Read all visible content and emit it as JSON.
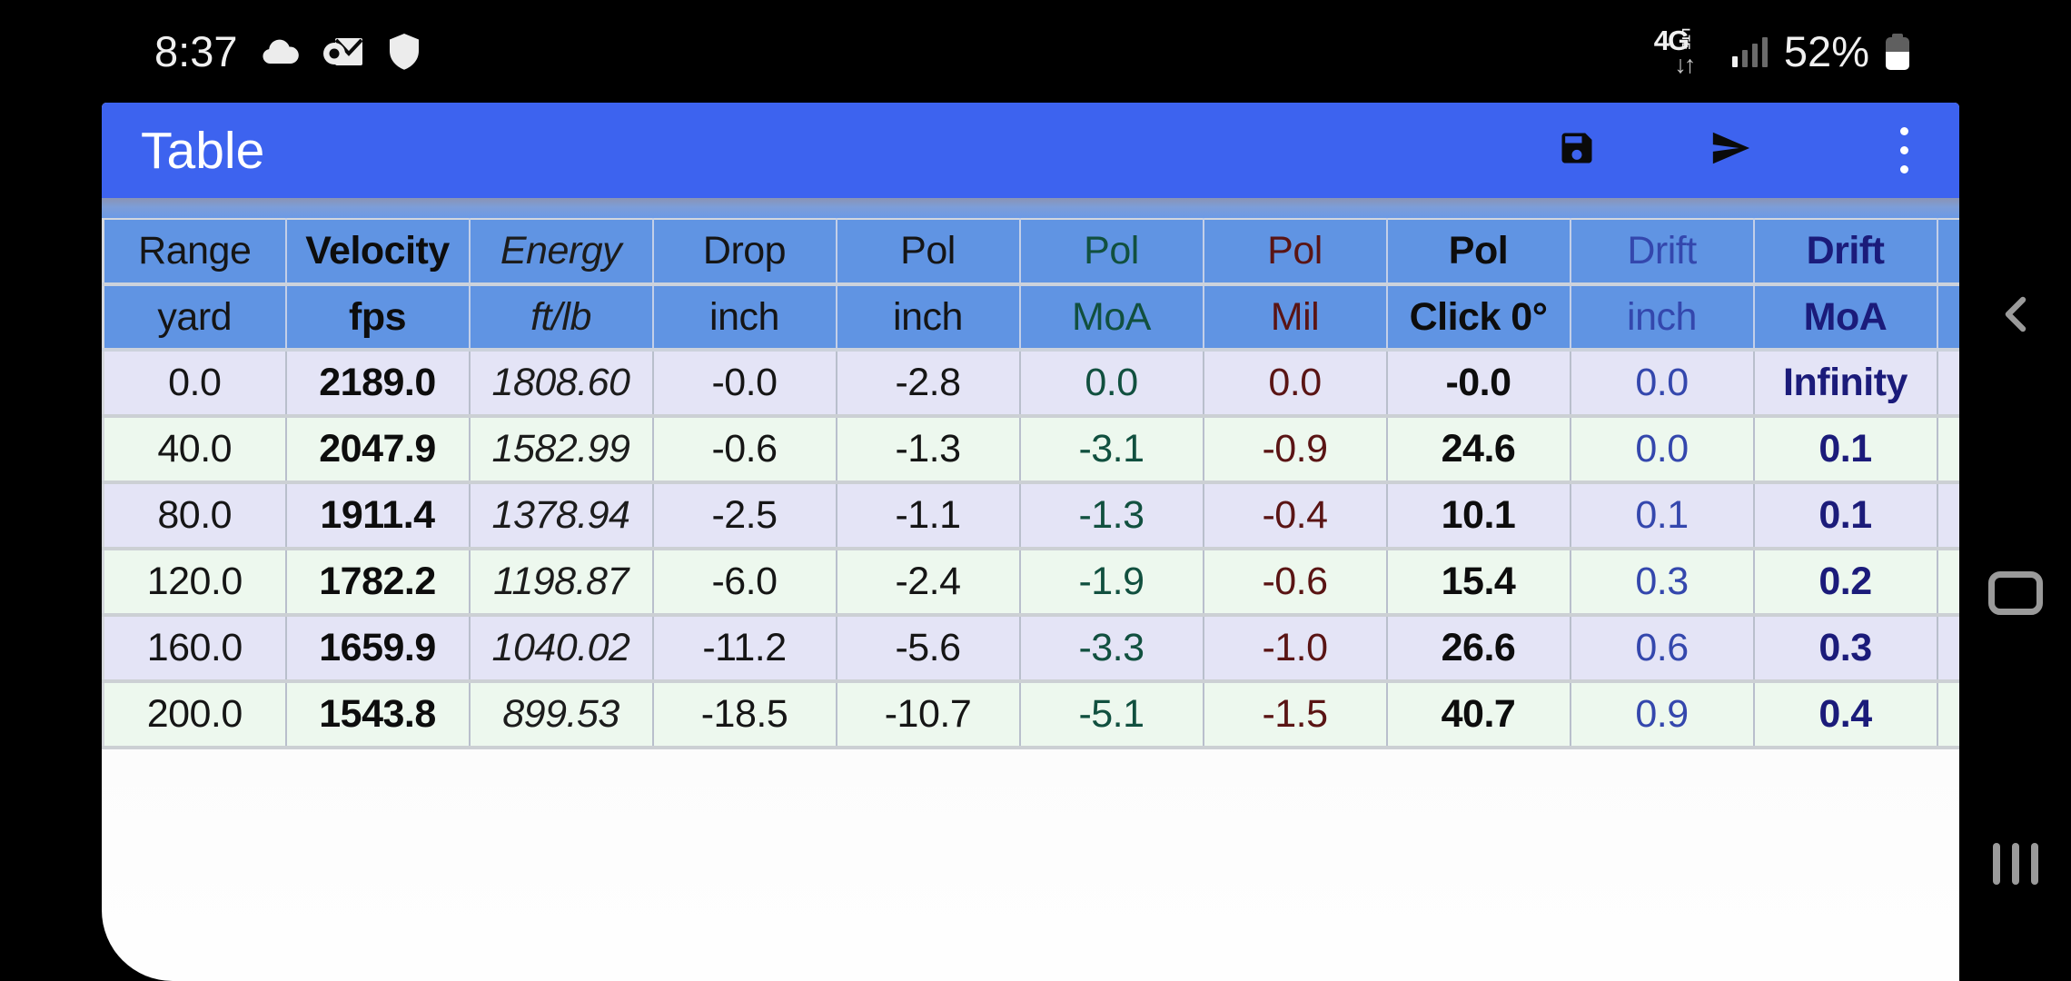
{
  "status_bar": {
    "time": "8:37",
    "notification_icons": [
      "cloud",
      "mail",
      "shield"
    ],
    "network": "4G",
    "network_tech": "LTE",
    "battery_percent": "52%",
    "battery_level": 52
  },
  "app_bar": {
    "title": "Table",
    "actions": [
      {
        "label": "Save",
        "icon": "save-icon"
      },
      {
        "label": "Send",
        "icon": "send-icon"
      },
      {
        "label": "More options",
        "icon": "overflow-menu-icon"
      }
    ]
  },
  "table": {
    "columns": [
      {
        "name": "Range",
        "unit": "yard",
        "style": "plain"
      },
      {
        "name": "Velocity",
        "unit": "fps",
        "style": "bold"
      },
      {
        "name": "Energy",
        "unit": "ft/lb",
        "style": "italic"
      },
      {
        "name": "Drop",
        "unit": "inch",
        "style": "plain"
      },
      {
        "name": "Pol",
        "unit": "inch",
        "style": "plain"
      },
      {
        "name": "Pol",
        "unit": "MoA",
        "style": "teal"
      },
      {
        "name": "Pol",
        "unit": "Mil",
        "style": "maroon"
      },
      {
        "name": "Pol",
        "unit": "Click 0°",
        "style": "boldblack"
      },
      {
        "name": "Drift",
        "unit": "inch",
        "style": "blue"
      },
      {
        "name": "Drift",
        "unit": "MoA",
        "style": "navybold"
      }
    ],
    "rows": [
      [
        "0.0",
        "2189.0",
        "1808.60",
        "-0.0",
        "-2.8",
        "0.0",
        "0.0",
        "-0.0",
        "0.0",
        "Infinity"
      ],
      [
        "40.0",
        "2047.9",
        "1582.99",
        "-0.6",
        "-1.3",
        "-3.1",
        "-0.9",
        "24.6",
        "0.0",
        "0.1"
      ],
      [
        "80.0",
        "1911.4",
        "1378.94",
        "-2.5",
        "-1.1",
        "-1.3",
        "-0.4",
        "10.1",
        "0.1",
        "0.1"
      ],
      [
        "120.0",
        "1782.2",
        "1198.87",
        "-6.0",
        "-2.4",
        "-1.9",
        "-0.6",
        "15.4",
        "0.3",
        "0.2"
      ],
      [
        "160.0",
        "1659.9",
        "1040.02",
        "-11.2",
        "-5.6",
        "-3.3",
        "-1.0",
        "26.6",
        "0.6",
        "0.3"
      ],
      [
        "200.0",
        "1543.8",
        "899.53",
        "-18.5",
        "-10.7",
        "-5.1",
        "-1.5",
        "40.7",
        "0.9",
        "0.4"
      ]
    ]
  },
  "nav_bar": {
    "buttons": [
      {
        "label": "Back",
        "icon": "back-chevron-icon"
      },
      {
        "label": "Home",
        "icon": "home-icon"
      },
      {
        "label": "Recents",
        "icon": "recents-icon"
      }
    ]
  },
  "colors": {
    "app_bar_blue": "#3d63ef",
    "header_blue": "#6094e3",
    "row_lavender": "#e4e4f6",
    "row_green": "#edf8ee",
    "teal_text": "#11503f",
    "maroon_text": "#5a1414",
    "blue_text": "#3447ad",
    "navy_text": "#1b1b7a",
    "nav_icon": "#9a9a9a",
    "sb_white": "#f0f0f0"
  }
}
